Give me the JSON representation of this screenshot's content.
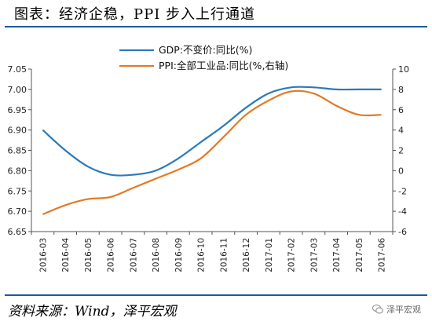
{
  "page": {
    "title": "图表：经济企稳，PPI 步入上行通道",
    "source": "资料来源：Wind，泽平宏观",
    "watermark": "泽平宏观",
    "watermark_icon": "wechat-icon"
  },
  "chart_data": {
    "type": "line",
    "title": "",
    "x": [
      "2016-03",
      "2016-04",
      "2016-05",
      "2016-06",
      "2016-07",
      "2016-08",
      "2016-09",
      "2016-10",
      "2016-11",
      "2016-12",
      "2017-01",
      "2017-02",
      "2017-03",
      "2017-04",
      "2017-05",
      "2017-06"
    ],
    "y_left": {
      "ylim": [
        6.65,
        7.05
      ],
      "ticks": [
        "6.65",
        "6.70",
        "6.75",
        "6.80",
        "6.85",
        "6.90",
        "6.95",
        "7.00",
        "7.05"
      ],
      "tick_values": [
        6.65,
        6.7,
        6.75,
        6.8,
        6.85,
        6.9,
        6.95,
        7.0,
        7.05
      ]
    },
    "y_right": {
      "ylim": [
        -6,
        10
      ],
      "ticks": [
        "-6",
        "-4",
        "-2",
        "0",
        "2",
        "4",
        "6",
        "8",
        "10"
      ],
      "tick_values": [
        -6,
        -4,
        -2,
        0,
        2,
        4,
        6,
        8,
        10
      ]
    },
    "grid": false,
    "legend_position": "top-left",
    "series": [
      {
        "name": "GDP:不变价:同比(%)",
        "axis": "left",
        "color": "#2a7ab9",
        "values": [
          6.9,
          6.85,
          6.81,
          6.79,
          6.79,
          6.8,
          6.83,
          6.87,
          6.91,
          6.955,
          6.99,
          7.005,
          7.005,
          7.0,
          7.0,
          7.0
        ]
      },
      {
        "name": "PPI:全部工业品:同比(%,右轴)",
        "axis": "right",
        "color": "#e07b28",
        "values": [
          -4.3,
          -3.4,
          -2.8,
          -2.6,
          -1.7,
          -0.8,
          0.1,
          1.2,
          3.3,
          5.5,
          6.9,
          7.8,
          7.6,
          6.4,
          5.5,
          5.5
        ]
      }
    ]
  }
}
